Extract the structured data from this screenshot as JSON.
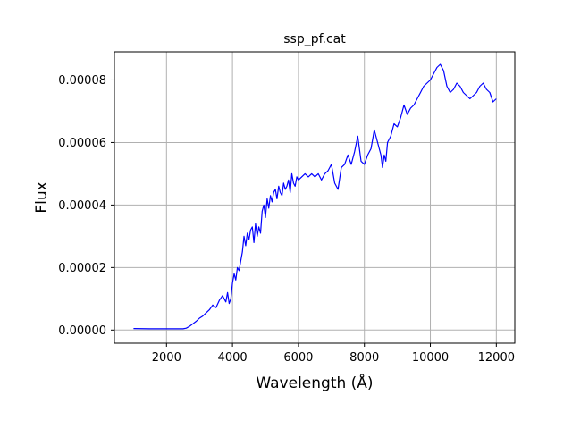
{
  "chart_data": {
    "type": "line",
    "title": "ssp_pf.cat",
    "xlabel": "Wavelength (Å)",
    "ylabel": "Flux",
    "xlim": [
      420,
      12560
    ],
    "ylim": [
      -4.2e-06,
      8.9e-05
    ],
    "xticks": [
      2000,
      4000,
      6000,
      8000,
      10000,
      12000
    ],
    "xtick_labels": [
      "2000",
      "4000",
      "6000",
      "8000",
      "10000",
      "12000"
    ],
    "yticks": [
      0,
      2e-05,
      4e-05,
      6e-05,
      8e-05
    ],
    "ytick_labels": [
      "0.00000",
      "0.00002",
      "0.00004",
      "0.00006",
      "0.00008"
    ],
    "grid": true,
    "legend": "none",
    "series": [
      {
        "color": "#0000ff",
        "x": [
          1000,
          1500,
          2000,
          2500,
          2600,
          2700,
          2800,
          2900,
          3000,
          3100,
          3200,
          3300,
          3400,
          3500,
          3600,
          3700,
          3800,
          3850,
          3900,
          3950,
          4000,
          4050,
          4100,
          4150,
          4200,
          4250,
          4300,
          4350,
          4400,
          4450,
          4500,
          4550,
          4600,
          4650,
          4700,
          4750,
          4800,
          4850,
          4900,
          4950,
          5000,
          5050,
          5100,
          5150,
          5200,
          5250,
          5300,
          5350,
          5400,
          5450,
          5500,
          5550,
          5600,
          5650,
          5700,
          5750,
          5800,
          5850,
          5900,
          5950,
          6000,
          6100,
          6200,
          6300,
          6400,
          6500,
          6600,
          6700,
          6800,
          6900,
          7000,
          7100,
          7200,
          7300,
          7400,
          7500,
          7600,
          7700,
          7800,
          7900,
          8000,
          8100,
          8200,
          8300,
          8400,
          8500,
          8550,
          8600,
          8650,
          8700,
          8800,
          8900,
          9000,
          9100,
          9200,
          9300,
          9400,
          9500,
          9600,
          9700,
          9800,
          9900,
          10000,
          10100,
          10200,
          10300,
          10400,
          10500,
          10600,
          10700,
          10800,
          10900,
          11000,
          11100,
          11200,
          11300,
          11400,
          11500,
          11600,
          11700,
          11800,
          11900,
          12000
        ],
        "values": [
          5e-07,
          4e-07,
          4e-07,
          4e-07,
          6e-07,
          1.2e-06,
          2e-06,
          2.8e-06,
          3.8e-06,
          4.5e-06,
          5.5e-06,
          6.5e-06,
          8e-06,
          7.2e-06,
          9.5e-06,
          1.1e-05,
          9e-06,
          1.2e-05,
          8.5e-06,
          1e-05,
          1.5e-05,
          1.8e-05,
          1.6e-05,
          2e-05,
          1.9e-05,
          2.2e-05,
          2.5e-05,
          3e-05,
          2.7e-05,
          3.1e-05,
          2.9e-05,
          3.2e-05,
          3.3e-05,
          2.8e-05,
          3.4e-05,
          3e-05,
          3.3e-05,
          3.1e-05,
          3.8e-05,
          4e-05,
          3.6e-05,
          4.2e-05,
          3.9e-05,
          4.3e-05,
          4.1e-05,
          4.4e-05,
          4.5e-05,
          4.2e-05,
          4.6e-05,
          4.4e-05,
          4.3e-05,
          4.7e-05,
          4.5e-05,
          4.6e-05,
          4.8e-05,
          4.4e-05,
          5e-05,
          4.7e-05,
          4.6e-05,
          4.9e-05,
          4.8e-05,
          4.9e-05,
          5e-05,
          4.9e-05,
          5e-05,
          4.9e-05,
          5e-05,
          4.8e-05,
          5e-05,
          5.1e-05,
          5.3e-05,
          4.7e-05,
          4.5e-05,
          5.2e-05,
          5.3e-05,
          5.6e-05,
          5.3e-05,
          5.7e-05,
          6.2e-05,
          5.4e-05,
          5.3e-05,
          5.6e-05,
          5.8e-05,
          6.4e-05,
          6e-05,
          5.6e-05,
          5.2e-05,
          5.6e-05,
          5.4e-05,
          6e-05,
          6.2e-05,
          6.6e-05,
          6.5e-05,
          6.8e-05,
          7.2e-05,
          6.9e-05,
          7.1e-05,
          7.2e-05,
          7.4e-05,
          7.6e-05,
          7.8e-05,
          7.9e-05,
          8e-05,
          8.2e-05,
          8.4e-05,
          8.5e-05,
          8.3e-05,
          7.8e-05,
          7.6e-05,
          7.7e-05,
          7.9e-05,
          7.8e-05,
          7.6e-05,
          7.5e-05,
          7.4e-05,
          7.5e-05,
          7.6e-05,
          7.8e-05,
          7.9e-05,
          7.7e-05,
          7.6e-05,
          7.3e-05,
          7.4e-05
        ]
      }
    ]
  }
}
